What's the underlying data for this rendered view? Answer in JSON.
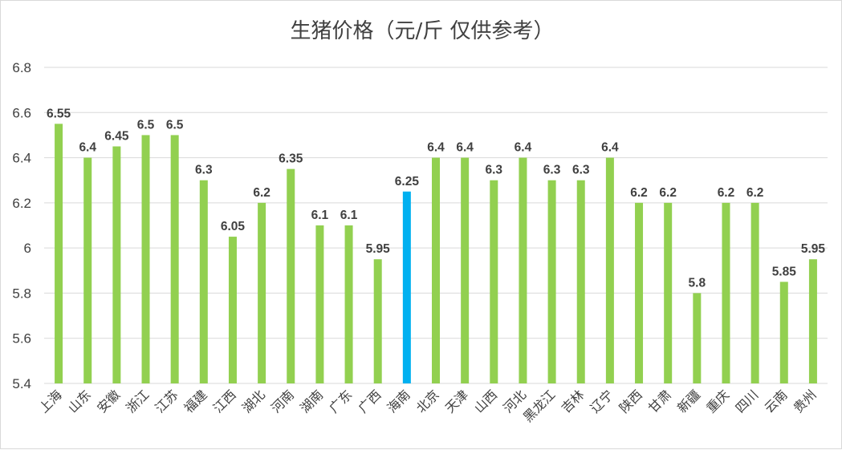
{
  "chart_data": {
    "type": "bar",
    "title": "生猪价格（元/斤 仅供参考）",
    "xlabel": "",
    "ylabel": "",
    "ylim": [
      5.4,
      6.8
    ],
    "yticks": [
      5.4,
      5.6,
      5.8,
      6,
      6.2,
      6.4,
      6.6,
      6.8
    ],
    "ytick_labels": [
      "5.4",
      "5.6",
      "5.8",
      "6",
      "6.2",
      "6.4",
      "6.6",
      "6.8"
    ],
    "grid": true,
    "legend": "none",
    "categories": [
      "上海",
      "山东",
      "安徽",
      "浙江",
      "江苏",
      "福建",
      "江西",
      "湖北",
      "河南",
      "湖南",
      "广东",
      "广西",
      "海南",
      "北京",
      "天津",
      "山西",
      "河北",
      "黑龙江",
      "吉林",
      "辽宁",
      "陕西",
      "甘肃",
      "新疆",
      "重庆",
      "四川",
      "云南",
      "贵州"
    ],
    "values": [
      6.55,
      6.4,
      6.45,
      6.5,
      6.5,
      6.3,
      6.05,
      6.2,
      6.35,
      6.1,
      6.1,
      5.95,
      6.25,
      6.4,
      6.4,
      6.3,
      6.4,
      6.3,
      6.3,
      6.4,
      6.2,
      6.2,
      5.8,
      6.2,
      6.2,
      5.85,
      5.95
    ],
    "value_labels": [
      "6.55",
      "6.4",
      "6.45",
      "6.5",
      "6.5",
      "6.3",
      "6.05",
      "6.2",
      "6.35",
      "6.1",
      "6.1",
      "5.95",
      "6.25",
      "6.4",
      "6.4",
      "6.3",
      "6.4",
      "6.3",
      "6.3",
      "6.4",
      "6.2",
      "6.2",
      "5.8",
      "6.2",
      "6.2",
      "5.85",
      "5.95"
    ],
    "highlight_category": "海南",
    "colors": {
      "bar": "#92d050",
      "highlight": "#00b0f0",
      "grid": "#d9d9d9",
      "text": "#404040"
    }
  }
}
